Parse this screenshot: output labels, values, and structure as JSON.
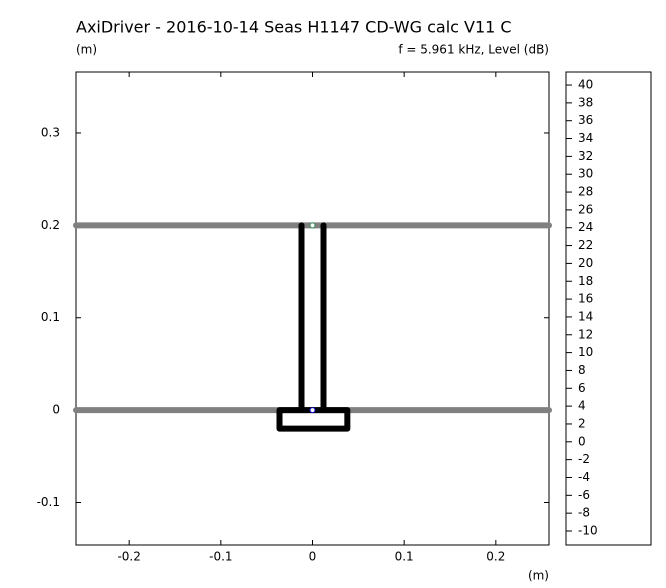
{
  "chart_data": {
    "type": "geometry",
    "title": "AxiDriver - 2016-10-14 Seas H1147 CD-WG calc V11 C",
    "y_label": "(m)",
    "subtitle": "f = 5.961 kHz, Level  (dB)",
    "x_label": "(m)",
    "xlim": [
      -0.258,
      0.258
    ],
    "ylim": [
      -0.146,
      0.366
    ],
    "xticks": [
      -0.2,
      -0.1,
      0,
      0.1,
      0.2
    ],
    "yticks": [
      -0.1,
      0,
      0.1,
      0.2,
      0.3
    ],
    "series": [
      {
        "color": "#808080",
        "x": [
          -0.258,
          0.258
        ],
        "y": [
          0.2,
          0.2
        ]
      },
      {
        "color": "#808080",
        "x": [
          -0.258,
          0.258
        ],
        "y": [
          0,
          0
        ]
      },
      {
        "color": "#000000",
        "x": [
          -0.012,
          -0.012
        ],
        "y": [
          0.2,
          0
        ]
      },
      {
        "color": "#000000",
        "x": [
          0.012,
          0.012
        ],
        "y": [
          0.2,
          0
        ]
      },
      {
        "color": "#000000",
        "x": [
          -0.036,
          0.038,
          0.038,
          -0.036,
          -0.036
        ],
        "y": [
          0,
          0,
          -0.02,
          -0.02,
          0
        ]
      }
    ],
    "markers": [
      {
        "x": 0,
        "y": 0.2,
        "color": "#2e8b57"
      },
      {
        "x": 0,
        "y": 0,
        "color": "#0000cc"
      }
    ],
    "colorbar": {
      "lim": [
        -11.57,
        41.46
      ],
      "ticks": [
        -10,
        -8,
        -6,
        -4,
        -2,
        0,
        2,
        4,
        6,
        8,
        10,
        12,
        14,
        16,
        18,
        20,
        22,
        24,
        26,
        28,
        30,
        32,
        34,
        36,
        38,
        40
      ]
    }
  }
}
